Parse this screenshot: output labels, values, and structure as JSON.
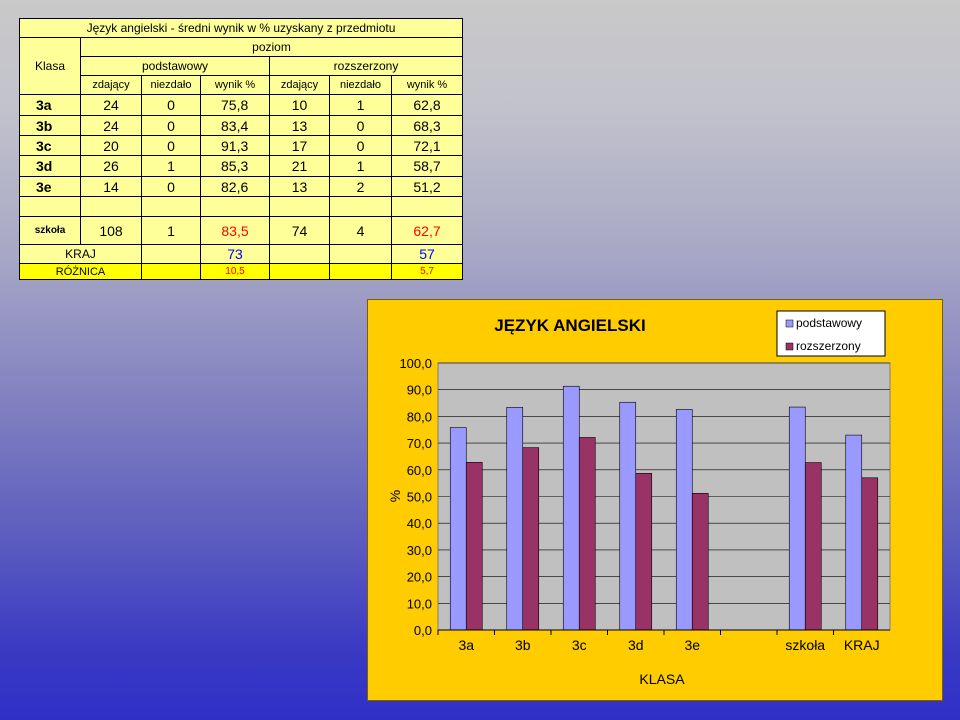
{
  "table": {
    "title": "Język angielski - średni wynik w % uzyskany z przedmiotu",
    "klasa_label": "Klasa",
    "poziom_label": "poziom",
    "podstawowy_label": "podstawowy",
    "rozszerzony_label": "rozszerzony",
    "sub_headers": [
      "zdający",
      "niezdało",
      "wynik %",
      "zdający",
      "niezdało",
      "wynik %"
    ],
    "rows": [
      {
        "klasa": "3a",
        "p_zd": "24",
        "p_nz": "0",
        "p_wynik": "75,8",
        "r_zd": "10",
        "r_nz": "1",
        "r_wynik": "62,8"
      },
      {
        "klasa": "3b",
        "p_zd": "24",
        "p_nz": "0",
        "p_wynik": "83,4",
        "r_zd": "13",
        "r_nz": "0",
        "r_wynik": "68,3"
      },
      {
        "klasa": "3c",
        "p_zd": "20",
        "p_nz": "0",
        "p_wynik": "91,3",
        "r_zd": "17",
        "r_nz": "0",
        "r_wynik": "72,1"
      },
      {
        "klasa": "3d",
        "p_zd": "26",
        "p_nz": "1",
        "p_wynik": "85,3",
        "r_zd": "21",
        "r_nz": "1",
        "r_wynik": "58,7"
      },
      {
        "klasa": "3e",
        "p_zd": "14",
        "p_nz": "0",
        "p_wynik": "82,6",
        "r_zd": "13",
        "r_nz": "2",
        "r_wynik": "51,2"
      }
    ],
    "szkola": {
      "label": "szkoła",
      "p_zd": "108",
      "p_nz": "1",
      "p_wynik": "83,5",
      "r_zd": "74",
      "r_nz": "4",
      "r_wynik": "62,7"
    },
    "kraj": {
      "label": "KRAJ",
      "p_wynik": "73",
      "r_wynik": "57"
    },
    "roznica": {
      "label": "RÓŻNICA",
      "p_wynik": "10,5",
      "r_wynik": "5,7"
    }
  },
  "colors": {
    "podstawowy": "#9999ff",
    "rozszerzony": "#993366",
    "chart_bg": "#ffcc00",
    "plot_bg": "#c0c0c0"
  },
  "chart_data": {
    "type": "bar",
    "title": "JĘZYK ANGIELSKI",
    "xlabel": "KLASA",
    "ylabel": "%",
    "categories": [
      "3a",
      "3b",
      "3c",
      "3d",
      "3e",
      "",
      "szkoła",
      "KRAJ"
    ],
    "series": [
      {
        "name": "podstawowy",
        "values": [
          75.8,
          83.4,
          91.3,
          85.3,
          82.6,
          null,
          83.5,
          73
        ]
      },
      {
        "name": "rozszerzony",
        "values": [
          62.8,
          68.3,
          72.1,
          58.7,
          51.2,
          null,
          62.7,
          57
        ]
      }
    ],
    "ylim": [
      0,
      100
    ],
    "yticks": [
      "0,0",
      "10,0",
      "20,0",
      "30,0",
      "40,0",
      "50,0",
      "60,0",
      "70,0",
      "80,0",
      "90,0",
      "100,0"
    ],
    "grid": true,
    "legend_position": "top-right"
  }
}
